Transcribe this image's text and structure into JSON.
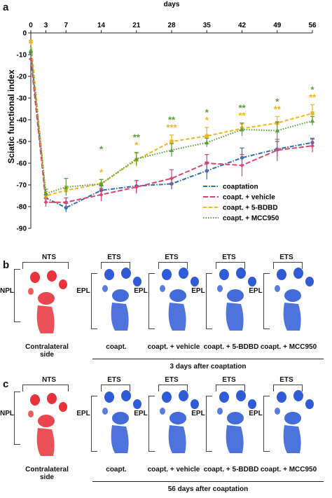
{
  "panels": {
    "a": "a",
    "b": "b",
    "c": "c"
  },
  "chart_data": {
    "type": "line",
    "xlabel": "days",
    "ylabel": "Sciatic functional index",
    "x": [
      0,
      3,
      7,
      14,
      21,
      28,
      35,
      42,
      49,
      56
    ],
    "xticks": [
      "0",
      "3",
      "7",
      "14",
      "21",
      "28",
      "35",
      "42",
      "49",
      "56"
    ],
    "ylim": [
      -90,
      0
    ],
    "yticks": [
      "0",
      "-10",
      "-20",
      "-30",
      "-40",
      "-50",
      "-60",
      "-70",
      "-80",
      "-90"
    ],
    "x_axis_position": "top",
    "legend_position": "bottom-right",
    "grid": false,
    "series": [
      {
        "name": "coaptation",
        "color": "#2e6db4",
        "dash": "dash-dot",
        "values": [
          -9,
          -76,
          -80.5,
          -72.5,
          -70.5,
          -69.5,
          -63.5,
          -57.5,
          -53.5,
          -50.5
        ],
        "err": [
          0,
          1.5,
          2,
          2,
          2.5,
          2.5,
          4,
          4.5,
          3.5,
          2
        ]
      },
      {
        "name": "coapt. + vehicle",
        "color": "#d9466e",
        "dash": "long-dash",
        "values": [
          -12,
          -78,
          -78,
          -74.5,
          -71,
          -67,
          -60,
          -61,
          -54,
          -52
        ],
        "err": [
          0,
          2,
          2,
          3,
          3,
          4,
          4,
          5,
          5,
          3
        ]
      },
      {
        "name": "coapt. + 5-BDBD",
        "color": "#f2b418",
        "dash": "dash",
        "values": [
          -4,
          -75,
          -72.5,
          -69.5,
          -58.5,
          -50,
          -47.5,
          -44,
          -41.5,
          -37
        ],
        "err": [
          0,
          2,
          2,
          2,
          3,
          3,
          4,
          2,
          3,
          4
        ]
      },
      {
        "name": "coapt. + MCC950",
        "color": "#5a9e3a",
        "dash": "dot",
        "values": [
          -8,
          -74,
          -71,
          -69.5,
          -58,
          -54,
          -50.5,
          -44.5,
          -45,
          -40.5
        ],
        "err": [
          0,
          2,
          4,
          2,
          3,
          3,
          2,
          3,
          4,
          2
        ]
      }
    ],
    "significance": [
      {
        "day": 14,
        "green": "",
        "orange": "*"
      },
      {
        "day": 14,
        "green": "*",
        "orange": ""
      },
      {
        "day": 21,
        "green": "**",
        "orange": "*"
      },
      {
        "day": 28,
        "green": "**",
        "orange": "***"
      },
      {
        "day": 35,
        "green": "*",
        "orange": "*"
      },
      {
        "day": 42,
        "green": "**",
        "orange": "**"
      },
      {
        "day": 49,
        "green": "*",
        "orange": "**"
      },
      {
        "day": 56,
        "green": "*",
        "orange": "**"
      }
    ]
  },
  "print_panels": {
    "b": {
      "contralateral_top": "NTS",
      "contralateral_side": "NPL",
      "contralateral_caption_1": "Contralateral",
      "contralateral_caption_2": "side",
      "top_label": "ETS",
      "side_label": "EPL",
      "captions": [
        "coapt.",
        "coapt. + vehicle",
        "coapt. + 5-BDBD",
        "coapt. + MCC950"
      ],
      "group_label": "3 days after coaptation"
    },
    "c": {
      "contralateral_top": "NTS",
      "contralateral_side": "NPL",
      "contralateral_caption_1": "Contralateral",
      "contralateral_caption_2": "side",
      "top_label": "ETS",
      "side_label": "EPL",
      "captions": [
        "coapt.",
        "coapt. + vehicle",
        "coapt. + 5-BDBD",
        "coapt. + MCC950"
      ],
      "group_label": "56 days after coaptation"
    }
  },
  "colors": {
    "contralateral_ink": "#e8323c",
    "experimental_ink": "#2f5bd6"
  }
}
